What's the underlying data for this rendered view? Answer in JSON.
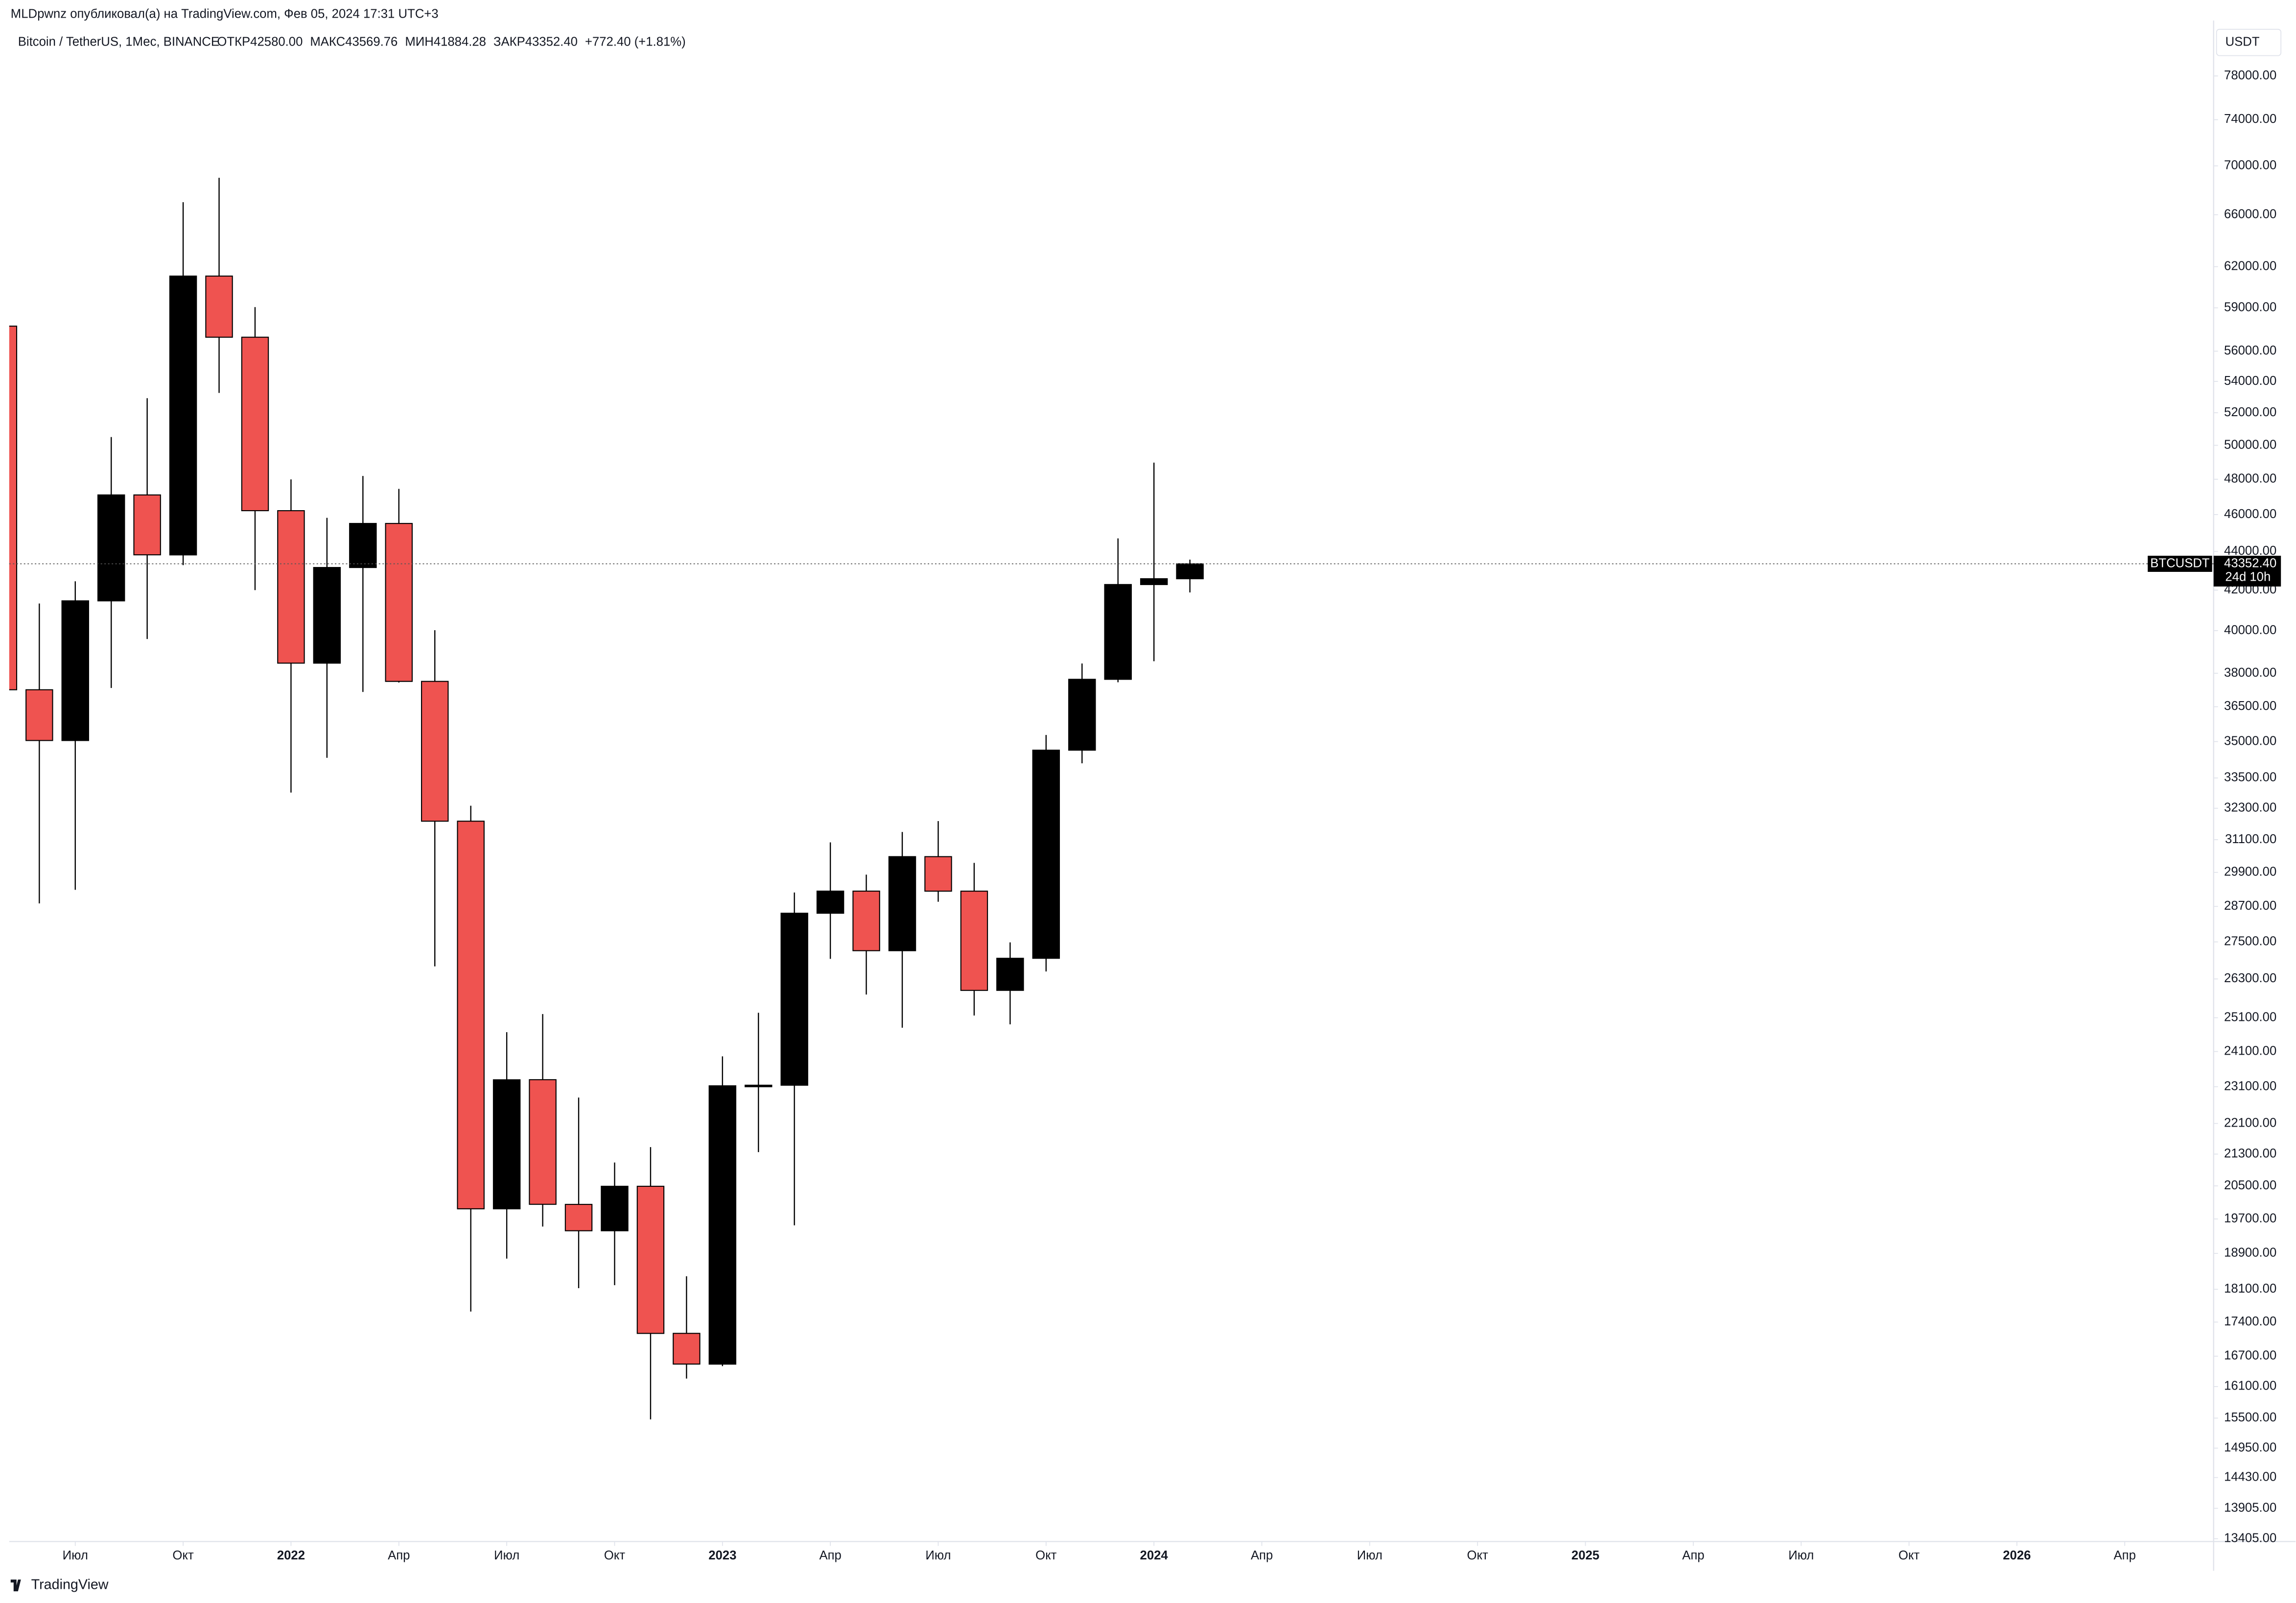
{
  "header": "MLDpwnz опубликовал(а) на TradingView.com, Фев 05, 2024 17:31 UTC+3",
  "chart_data": {
    "type": "candlestick",
    "symbol": "Bitcoin / TetherUS, 1Мес, BINANCE",
    "ohlc_legend": [
      "ОТКР42580.00",
      "МАКС43569.76",
      "МИН41884.28",
      "ЗАКР43352.40",
      "+772.40 (+1.81%)"
    ],
    "currency": "USDT",
    "ticker_label": "BTCUSDT",
    "last_price": 43352.4,
    "last_price_label": "43352.40",
    "countdown": "24d 10h",
    "up_color": "#000000",
    "down_color": "#ef5350",
    "log_scale": true,
    "grid": false,
    "x": [
      "2021-05",
      "2021-06",
      "2021-07",
      "2021-08",
      "2021-09",
      "2021-10",
      "2021-11",
      "2021-12",
      "2022-01",
      "2022-02",
      "2022-03",
      "2022-04",
      "2022-05",
      "2022-06",
      "2022-07",
      "2022-08",
      "2022-09",
      "2022-10",
      "2022-11",
      "2022-12",
      "2023-01",
      "2023-02",
      "2023-03",
      "2023-04",
      "2023-05",
      "2023-06",
      "2023-07",
      "2023-08",
      "2023-09",
      "2023-10",
      "2023-11",
      "2023-12",
      "2024-01",
      "2024-02"
    ],
    "open": [
      57714,
      37253,
      35045,
      41461,
      47100,
      43820,
      61300,
      56950,
      46216,
      38466,
      43160,
      45510,
      37630,
      31801,
      19942,
      23296,
      20048,
      19422,
      20490,
      17165,
      16541,
      23125,
      23141,
      28465,
      29233,
      27210,
      30472,
      29232,
      25941,
      26962,
      34640,
      37724,
      42284,
      42580
    ],
    "high": [
      59500,
      41330,
      42448,
      50500,
      52920,
      67000,
      69000,
      59053,
      47990,
      45821,
      48189,
      47444,
      40023,
      32399,
      24668,
      25211,
      22800,
      21085,
      21480,
      18387,
      23960,
      25250,
      29184,
      31000,
      29820,
      31390,
      31804,
      30244,
      27483,
      35280,
      38450,
      44700,
      48969,
      43569.76
    ],
    "low": [
      30000,
      28805,
      29278,
      37332,
      39600,
      43283,
      53256,
      42000,
      32917,
      34322,
      37155,
      37578,
      26700,
      17622,
      18781,
      19520,
      18125,
      18190,
      15476,
      16256,
      16500,
      21351,
      19549,
      26943,
      25811,
      24800,
      28861,
      25166,
      24901,
      26538,
      34097,
      37590,
      38555,
      41884.28
    ],
    "close": [
      37253,
      35045,
      41461,
      47100,
      43824,
      61299,
      56950,
      46216,
      38466,
      43160,
      45510,
      37630,
      31801,
      19942,
      23293,
      20050,
      19422,
      20490,
      17164,
      16542,
      23125,
      23141,
      28465,
      29233,
      27210,
      30472,
      29232,
      25940,
      26962,
      34639,
      37724,
      42284,
      42580,
      43352.4
    ],
    "xlim": [
      "2021-05",
      "2026-07"
    ],
    "xticks": [
      {
        "value": "2021-07",
        "label": "Июл"
      },
      {
        "value": "2021-10",
        "label": "Окт"
      },
      {
        "value": "2022-01",
        "label": "2022"
      },
      {
        "value": "2022-04",
        "label": "Апр"
      },
      {
        "value": "2022-07",
        "label": "Июл"
      },
      {
        "value": "2022-10",
        "label": "Окт"
      },
      {
        "value": "2023-01",
        "label": "2023"
      },
      {
        "value": "2023-04",
        "label": "Апр"
      },
      {
        "value": "2023-07",
        "label": "Июл"
      },
      {
        "value": "2023-10",
        "label": "Окт"
      },
      {
        "value": "2024-01",
        "label": "2024"
      },
      {
        "value": "2024-04",
        "label": "Апр"
      },
      {
        "value": "2024-07",
        "label": "Июл"
      },
      {
        "value": "2024-10",
        "label": "Окт"
      },
      {
        "value": "2025-01",
        "label": "2025"
      },
      {
        "value": "2025-04",
        "label": "Апр"
      },
      {
        "value": "2025-07",
        "label": "Июл"
      },
      {
        "value": "2025-10",
        "label": "Окт"
      },
      {
        "value": "2026-01",
        "label": "2026"
      },
      {
        "value": "2026-04",
        "label": "Апр"
      }
    ],
    "ylim": [
      13360,
      82800
    ],
    "yticks": [
      {
        "value": 78000,
        "label": "78000.00"
      },
      {
        "value": 74000,
        "label": "74000.00"
      },
      {
        "value": 70000,
        "label": "70000.00"
      },
      {
        "value": 66000,
        "label": "66000.00"
      },
      {
        "value": 62000,
        "label": "62000.00"
      },
      {
        "value": 59000,
        "label": "59000.00"
      },
      {
        "value": 56000,
        "label": "56000.00"
      },
      {
        "value": 54000,
        "label": "54000.00"
      },
      {
        "value": 52000,
        "label": "52000.00"
      },
      {
        "value": 50000,
        "label": "50000.00"
      },
      {
        "value": 48000,
        "label": "48000.00"
      },
      {
        "value": 46000,
        "label": "46000.00"
      },
      {
        "value": 44000,
        "label": "44000.00"
      },
      {
        "value": 42000,
        "label": "42000.00"
      },
      {
        "value": 40000,
        "label": "40000.00"
      },
      {
        "value": 38000,
        "label": "38000.00"
      },
      {
        "value": 36500,
        "label": "36500.00"
      },
      {
        "value": 35000,
        "label": "35000.00"
      },
      {
        "value": 33500,
        "label": "33500.00"
      },
      {
        "value": 32300,
        "label": "32300.00"
      },
      {
        "value": 31100,
        "label": "31100.00"
      },
      {
        "value": 29900,
        "label": "29900.00"
      },
      {
        "value": 28700,
        "label": "28700.00"
      },
      {
        "value": 27500,
        "label": "27500.00"
      },
      {
        "value": 26300,
        "label": "26300.00"
      },
      {
        "value": 25100,
        "label": "25100.00"
      },
      {
        "value": 24100,
        "label": "24100.00"
      },
      {
        "value": 23100,
        "label": "23100.00"
      },
      {
        "value": 22100,
        "label": "22100.00"
      },
      {
        "value": 21300,
        "label": "21300.00"
      },
      {
        "value": 20500,
        "label": "20500.00"
      },
      {
        "value": 19700,
        "label": "19700.00"
      },
      {
        "value": 18900,
        "label": "18900.00"
      },
      {
        "value": 18100,
        "label": "18100.00"
      },
      {
        "value": 17400,
        "label": "17400.00"
      },
      {
        "value": 16700,
        "label": "16700.00"
      },
      {
        "value": 16100,
        "label": "16100.00"
      },
      {
        "value": 15500,
        "label": "15500.00"
      },
      {
        "value": 14950,
        "label": "14950.00"
      },
      {
        "value": 14430,
        "label": "14430.00"
      },
      {
        "value": 13905,
        "label": "13905.00"
      },
      {
        "value": 13405,
        "label": "13405.00"
      }
    ]
  },
  "footer": "TradingView"
}
